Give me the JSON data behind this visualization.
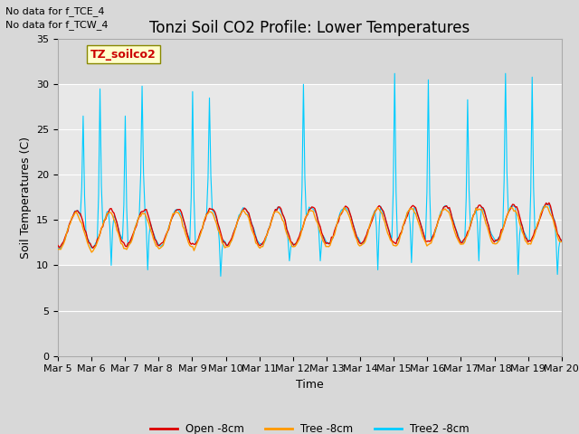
{
  "title": "Tonzi Soil CO2 Profile: Lower Temperatures",
  "ylabel": "Soil Temperatures (C)",
  "xlabel": "Time",
  "annotations": [
    "No data for f_TCE_4",
    "No data for f_TCW_4"
  ],
  "legend_label": "TZ_soilco2",
  "line_labels": [
    "Open -8cm",
    "Tree -8cm",
    "Tree2 -8cm"
  ],
  "line_colors": [
    "#dd0000",
    "#ff9900",
    "#00ccff"
  ],
  "ylim": [
    0,
    35
  ],
  "yticks": [
    0,
    5,
    10,
    15,
    20,
    25,
    30,
    35
  ],
  "outer_bg": "#d8d8d8",
  "inner_bg": "#e8e8e8",
  "shaded_lo": 10,
  "shaded_hi": 30,
  "x_tick_labels": [
    "Mar 5",
    "Mar 6",
    "Mar 7",
    "Mar 8",
    "Mar 9",
    "Mar 10",
    "Mar 11",
    "Mar 12",
    "Mar 13",
    "Mar 14",
    "Mar 15",
    "Mar 16",
    "Mar 17",
    "Mar 18",
    "Mar 19",
    "Mar 20"
  ],
  "title_fontsize": 12,
  "label_fontsize": 9,
  "tick_fontsize": 8,
  "annot_fontsize": 8
}
